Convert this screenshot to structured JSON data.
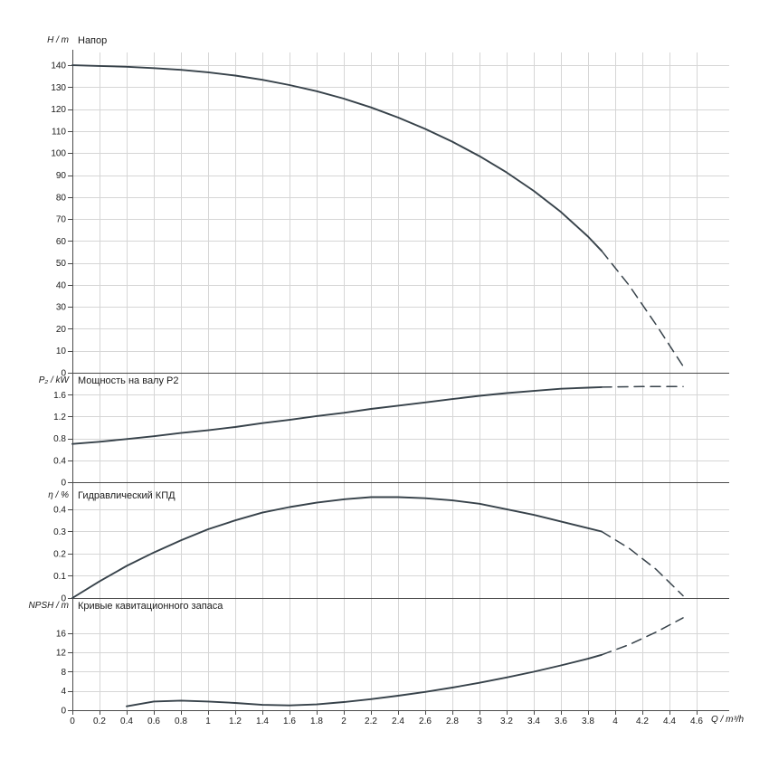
{
  "page": {
    "background": "#ffffff",
    "curve_color": "#37424a",
    "grid_color": "#d6d6d6",
    "axis_color": "#4a4a4a",
    "text_color": "#1a1a1a"
  },
  "x_axis": {
    "label": "Q / m³/h",
    "min": 0,
    "max": 4.6,
    "ticks": [
      "0",
      "0.2",
      "0.4",
      "0.6",
      "0.8",
      "1",
      "1.2",
      "1.4",
      "1.6",
      "1.8",
      "2",
      "2.2",
      "2.4",
      "2.6",
      "2.8",
      "3",
      "3.2",
      "3.4",
      "3.6",
      "3.8",
      "4",
      "4.2",
      "4.4",
      "4.6"
    ]
  },
  "chart_data": [
    {
      "type": "line",
      "id": "head",
      "title": "Напор",
      "ylabel": "H / m",
      "xlabel": "Q / m³/h",
      "ylim": [
        0,
        145
      ],
      "yticks": [
        "0",
        "10",
        "20",
        "30",
        "40",
        "50",
        "60",
        "70",
        "80",
        "90",
        "100",
        "110",
        "120",
        "130",
        "140"
      ],
      "grid": true,
      "series": [
        {
          "name": "Напор — рабочий диапазон",
          "style": "solid",
          "x": [
            0,
            0.2,
            0.4,
            0.6,
            0.8,
            1,
            1.2,
            1.4,
            1.6,
            1.8,
            2,
            2.2,
            2.4,
            2.6,
            2.8,
            3,
            3.2,
            3.4,
            3.6,
            3.8,
            3.9
          ],
          "y": [
            140,
            139.7,
            139.3,
            138.7,
            137.9,
            136.8,
            135.3,
            133.4,
            131,
            128.2,
            124.8,
            120.8,
            116.2,
            111,
            105.2,
            98.6,
            91.2,
            82.8,
            73.2,
            62,
            55.5
          ]
        },
        {
          "name": "Напор — экстраполяция",
          "style": "dashed",
          "x": [
            3.9,
            4.1,
            4.3,
            4.5
          ],
          "y": [
            55.5,
            40,
            22,
            3
          ]
        }
      ]
    },
    {
      "type": "line",
      "id": "shaft-power",
      "title": "Мощность на валу P2",
      "ylabel": "P₂ / kW",
      "xlabel": "Q / m³/h",
      "ylim": [
        0,
        1.87
      ],
      "yticks": [
        "0",
        "0.4",
        "0.8",
        "1.2",
        "1.6"
      ],
      "grid": true,
      "series": [
        {
          "name": "P2 — рабочий диапазон",
          "style": "solid",
          "x": [
            0,
            0.2,
            0.4,
            0.6,
            0.8,
            1,
            1.2,
            1.4,
            1.6,
            1.8,
            2,
            2.2,
            2.4,
            2.6,
            2.8,
            3,
            3.2,
            3.4,
            3.6,
            3.8,
            3.9
          ],
          "y": [
            0.7,
            0.74,
            0.79,
            0.84,
            0.9,
            0.95,
            1.01,
            1.08,
            1.14,
            1.21,
            1.27,
            1.34,
            1.4,
            1.46,
            1.52,
            1.58,
            1.63,
            1.67,
            1.71,
            1.73,
            1.74
          ]
        },
        {
          "name": "P2 — экстраполяция",
          "style": "dashed",
          "x": [
            3.9,
            4.2,
            4.5
          ],
          "y": [
            1.74,
            1.75,
            1.75
          ]
        }
      ]
    },
    {
      "type": "line",
      "id": "efficiency",
      "title": "Гидравлический КПД",
      "ylabel": "η / %",
      "xlabel": "Q / m³/h",
      "ylim": [
        0,
        0.465
      ],
      "yticks": [
        "0",
        "0.1",
        "0.2",
        "0.3",
        "0.4"
      ],
      "grid": true,
      "series": [
        {
          "name": "КПД — рабочий диапазон",
          "style": "solid",
          "x": [
            0,
            0.2,
            0.4,
            0.6,
            0.8,
            1,
            1.2,
            1.4,
            1.6,
            1.8,
            2,
            2.2,
            2.4,
            2.6,
            2.8,
            3,
            3.2,
            3.4,
            3.6,
            3.8,
            3.9
          ],
          "y": [
            0,
            0.075,
            0.145,
            0.205,
            0.26,
            0.31,
            0.35,
            0.385,
            0.41,
            0.43,
            0.445,
            0.455,
            0.455,
            0.45,
            0.44,
            0.425,
            0.4,
            0.375,
            0.345,
            0.315,
            0.3
          ]
        },
        {
          "name": "КПД — экстраполяция",
          "style": "dashed",
          "x": [
            3.9,
            4.1,
            4.3,
            4.5
          ],
          "y": [
            0.3,
            0.225,
            0.13,
            0.01
          ]
        }
      ]
    },
    {
      "type": "line",
      "id": "npsh",
      "title": "Кривые кавитационного запаса",
      "ylabel": "NPSH / m",
      "xlabel": "Q / m³/h",
      "ylim": [
        0,
        22
      ],
      "yticks": [
        "0",
        "4",
        "8",
        "12",
        "16"
      ],
      "grid": true,
      "series": [
        {
          "name": "NPSH — рабочий диапазон",
          "style": "solid",
          "x": [
            0.4,
            0.6,
            0.8,
            1,
            1.2,
            1.4,
            1.6,
            1.8,
            2,
            2.2,
            2.4,
            2.6,
            2.8,
            3,
            3.2,
            3.4,
            3.6,
            3.8,
            3.9
          ],
          "y": [
            0.8,
            1.8,
            2,
            1.8,
            1.5,
            1.1,
            1,
            1.2,
            1.7,
            2.3,
            3,
            3.8,
            4.7,
            5.7,
            6.8,
            8,
            9.3,
            10.7,
            11.5
          ]
        },
        {
          "name": "NPSH — экстраполяция",
          "style": "dashed",
          "x": [
            3.9,
            4.1,
            4.3,
            4.5
          ],
          "y": [
            11.5,
            13.6,
            16.2,
            19.2
          ]
        }
      ]
    }
  ]
}
